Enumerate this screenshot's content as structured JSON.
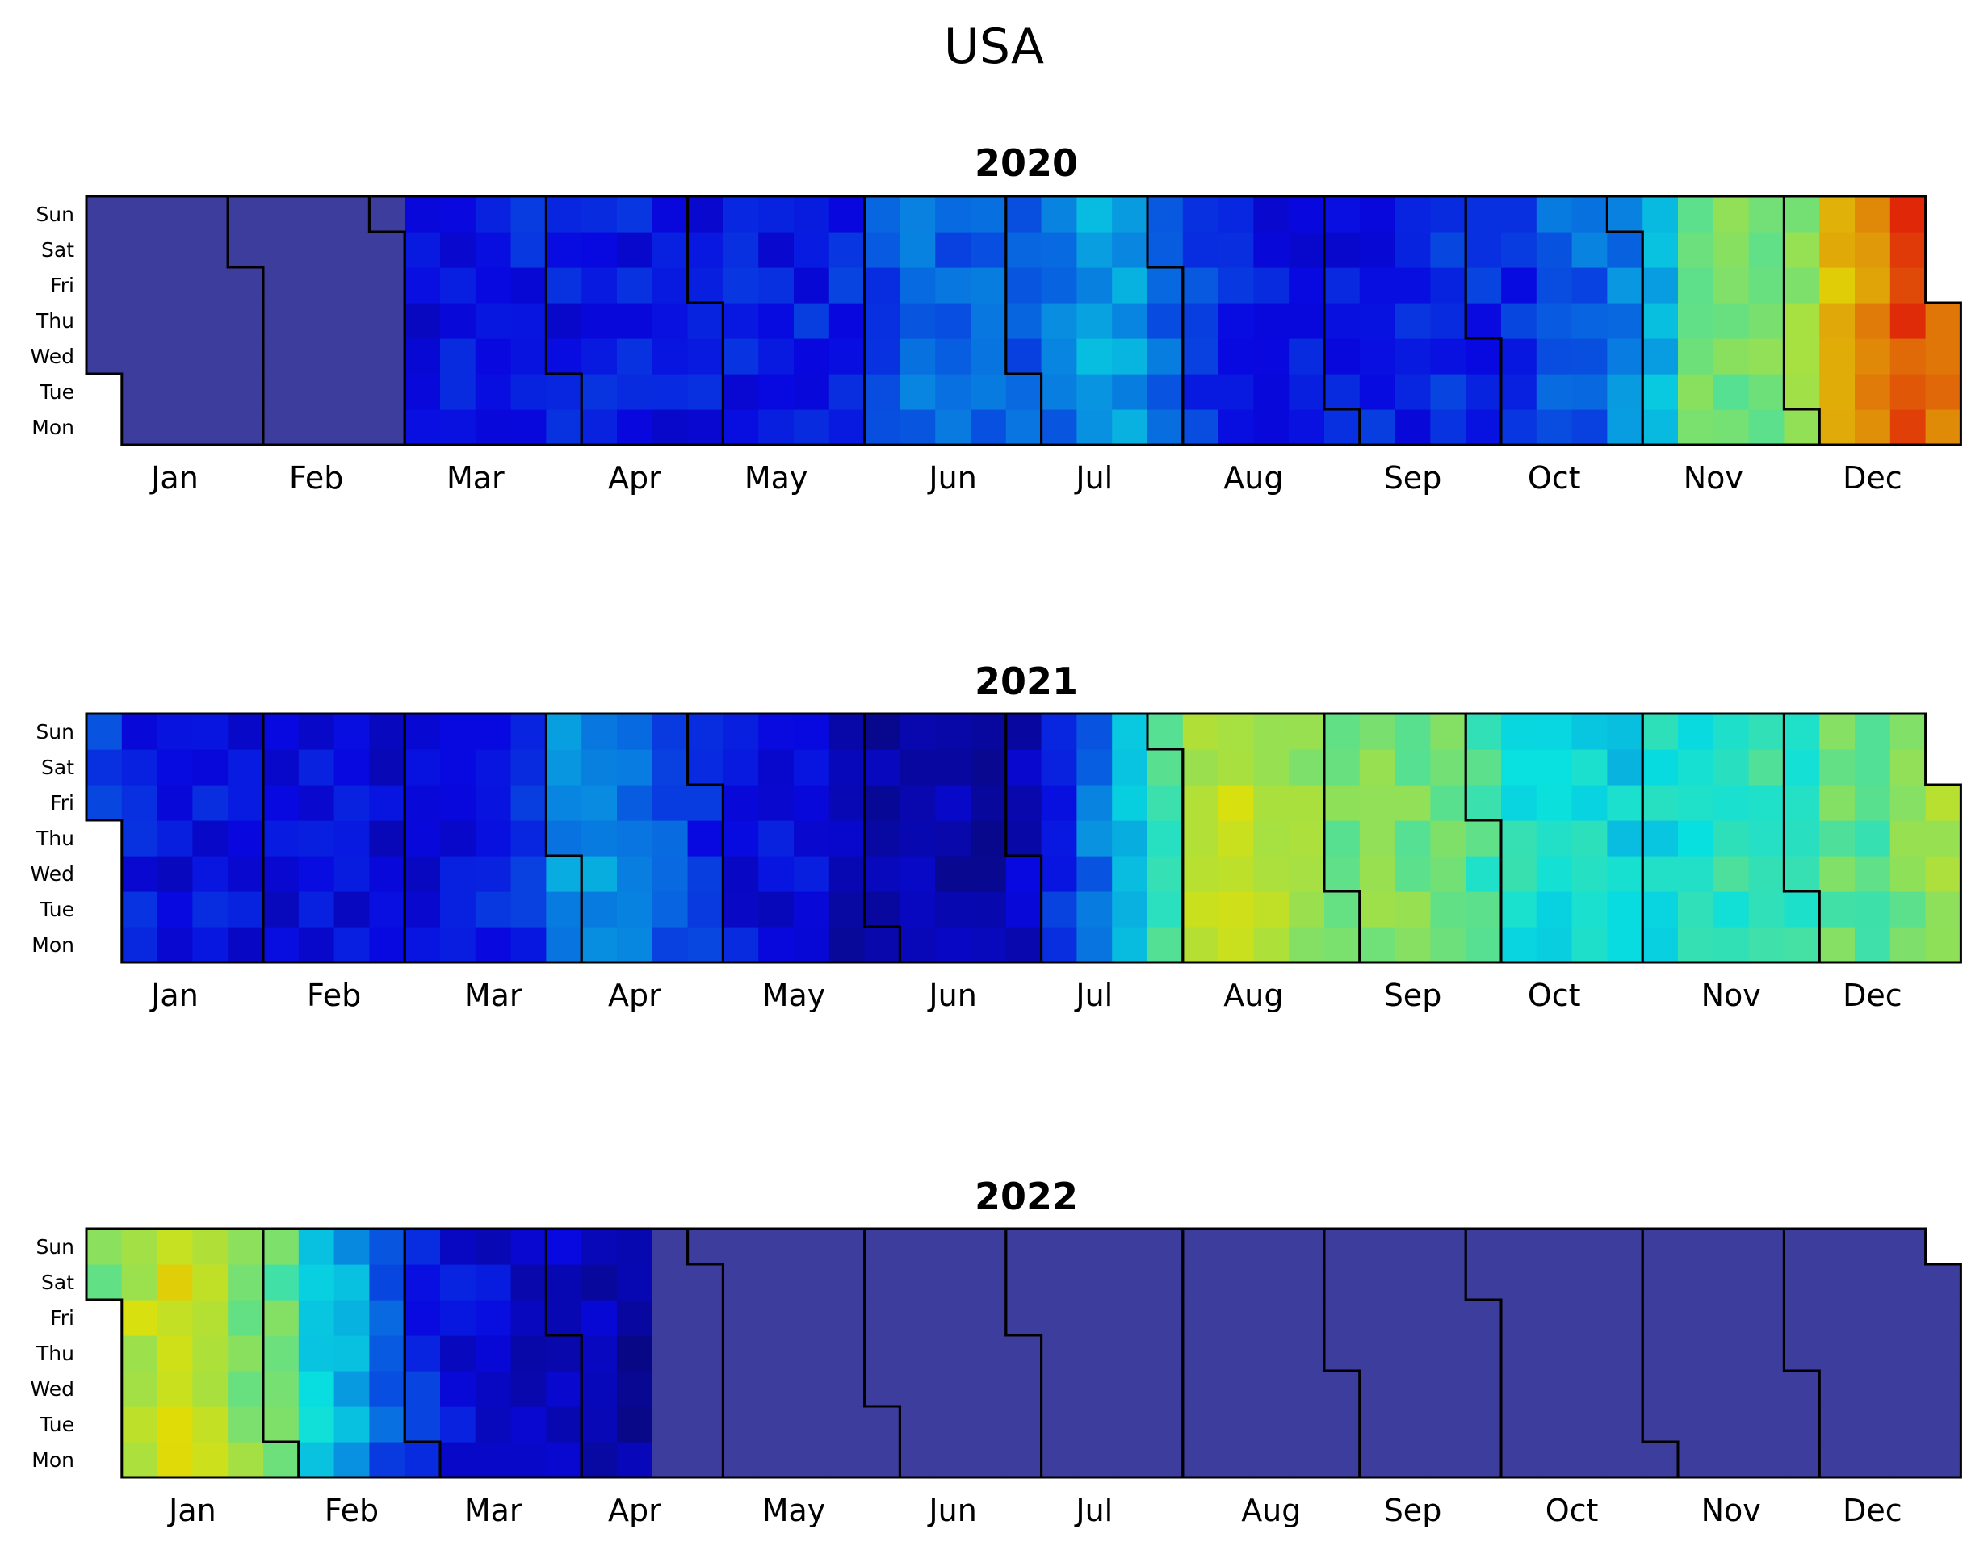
{
  "chart_data": {
    "type": "heatmap",
    "subtype": "calendar",
    "title": "USA",
    "colormap": "jet",
    "missing_color": "#3d3d9e",
    "value_range": [
      0,
      1
    ],
    "value_note": "relative intensity estimated from colour; weekly averages per weekday row",
    "day_labels": [
      "Sun",
      "Sat",
      "Fri",
      "Thu",
      "Wed",
      "Tue",
      "Mon"
    ],
    "panels": [
      {
        "year": "2020",
        "month_labels": [
          "Jan",
          "Feb",
          "Mar",
          "Apr",
          "May",
          "Jun",
          "Jul",
          "Aug",
          "Sep",
          "Oct",
          "Nov",
          "Dec"
        ],
        "weekly_values": [
          0,
          0,
          0,
          0,
          0,
          0,
          0,
          0,
          0,
          0.12,
          0.14,
          0.15,
          0.15,
          0.14,
          0.14,
          0.14,
          0.14,
          0.14,
          0.14,
          0.14,
          0.15,
          0.16,
          0.2,
          0.23,
          0.22,
          0.22,
          0.22,
          0.24,
          0.3,
          0.3,
          0.23,
          0.18,
          0.16,
          0.14,
          0.14,
          0.14,
          0.15,
          0.14,
          0.16,
          0.16,
          0.16,
          0.22,
          0.23,
          0.26,
          0.32,
          0.5,
          0.5,
          0.5,
          0.52,
          0.66,
          0.72,
          0.8,
          0.74,
          0.78
        ]
      },
      {
        "year": "2021",
        "month_labels": [
          "Jan",
          "Feb",
          "Mar",
          "Apr",
          "May",
          "Jun",
          "Jul",
          "Aug",
          "Sep",
          "Oct",
          "Nov",
          "Dec"
        ],
        "weekly_values": [
          0.2,
          0.14,
          0.12,
          0.13,
          0.12,
          0.12,
          0.12,
          0.12,
          0.11,
          0.12,
          0.14,
          0.16,
          0.17,
          0.28,
          0.28,
          0.24,
          0.2,
          0.16,
          0.13,
          0.12,
          0.12,
          0.08,
          0.07,
          0.06,
          0.06,
          0.06,
          0.09,
          0.16,
          0.25,
          0.34,
          0.44,
          0.56,
          0.58,
          0.55,
          0.54,
          0.5,
          0.52,
          0.5,
          0.48,
          0.44,
          0.4,
          0.38,
          0.38,
          0.36,
          0.38,
          0.4,
          0.42,
          0.42,
          0.42,
          0.48,
          0.46,
          0.5,
          0.56,
          0.62
        ]
      },
      {
        "year": "2022",
        "month_labels": [
          "Jan",
          "Feb",
          "Mar",
          "Apr",
          "May",
          "Jun",
          "Jul",
          "Aug",
          "Sep",
          "Oct",
          "Nov",
          "Dec"
        ],
        "weekly_values": [
          0.5,
          0.58,
          0.62,
          0.58,
          0.52,
          0.48,
          0.35,
          0.3,
          0.22,
          0.16,
          0.12,
          0.11,
          0.1,
          0.1,
          0.08,
          0.06,
          0,
          0,
          0,
          0,
          0,
          0,
          0,
          0,
          0,
          0,
          0,
          0,
          0,
          0,
          0,
          0,
          0,
          0,
          0,
          0,
          0,
          0,
          0,
          0,
          0,
          0,
          0,
          0,
          0,
          0,
          0,
          0,
          0,
          0,
          0,
          0,
          0,
          0
        ]
      }
    ]
  }
}
